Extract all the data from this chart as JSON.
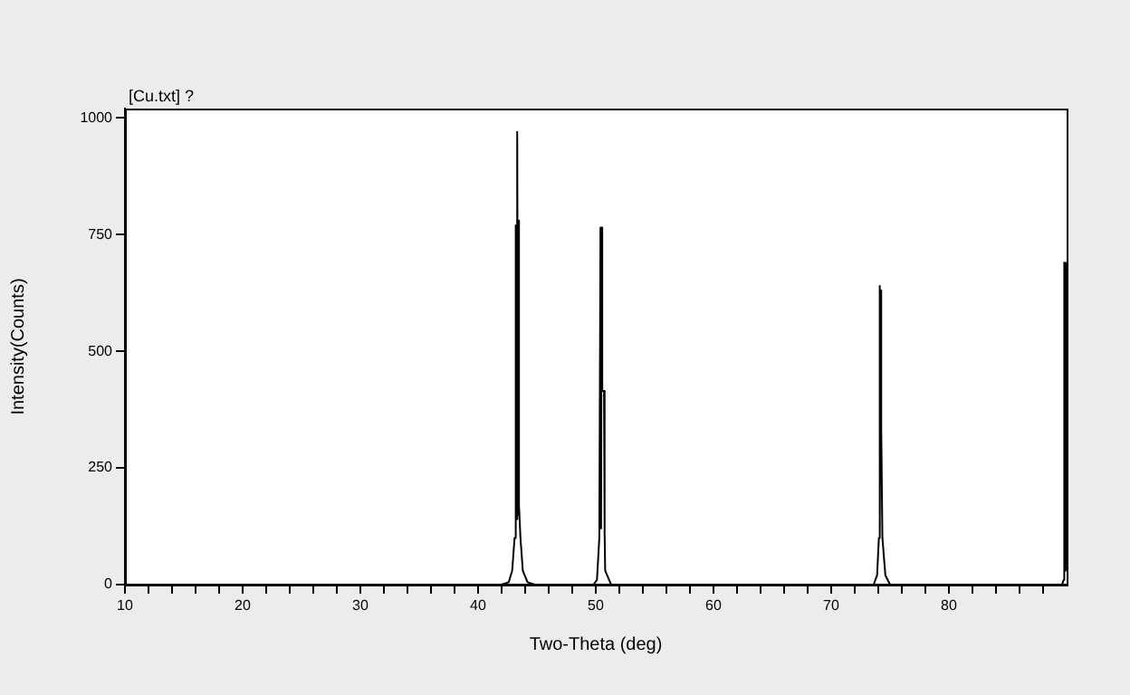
{
  "chart_data": {
    "type": "line",
    "title": "[Cu.txt] ?",
    "xlabel": "Two-Theta (deg)",
    "ylabel": "Intensity(Counts)",
    "x": [
      10,
      42.0,
      42.6,
      42.9,
      43.1,
      43.2,
      43.25,
      43.3,
      43.35,
      43.4,
      43.45,
      43.5,
      43.6,
      43.8,
      44.2,
      44.8,
      49.8,
      50.1,
      50.3,
      50.4,
      50.45,
      50.5,
      50.55,
      50.7,
      50.75,
      50.8,
      51.3,
      73.6,
      73.9,
      74.05,
      74.1,
      74.15,
      74.2,
      74.25,
      74.35,
      74.6,
      75.0,
      89.6,
      89.75,
      89.8,
      89.85,
      89.9,
      89.95
    ],
    "series": [
      {
        "color": "#000000",
        "values": [
          0,
          0,
          5,
          30,
          100,
          770,
          140,
          780,
          970,
          150,
          780,
          170,
          100,
          30,
          5,
          0,
          0,
          10,
          100,
          765,
          120,
          765,
          415,
          415,
          110,
          30,
          0,
          0,
          20,
          100,
          640,
          110,
          630,
          335,
          100,
          20,
          0,
          0,
          10,
          690,
          30,
          690,
          30
        ]
      }
    ],
    "xlim": [
      10,
      90
    ],
    "ylim": [
      0,
      1020
    ],
    "xticks": [
      10,
      {
        "value": 12,
        "label": null
      },
      {
        "value": 14,
        "label": null
      },
      {
        "value": 16,
        "label": null
      },
      {
        "value": 18,
        "label": null
      },
      20,
      {
        "value": 22,
        "label": null
      },
      {
        "value": 24,
        "label": null
      },
      {
        "value": 26,
        "label": null
      },
      {
        "value": 28,
        "label": null
      },
      30,
      {
        "value": 32,
        "label": null
      },
      {
        "value": 34,
        "label": null
      },
      {
        "value": 36,
        "label": null
      },
      {
        "value": 38,
        "label": null
      },
      40,
      {
        "value": 42,
        "label": null
      },
      {
        "value": 44,
        "label": null
      },
      {
        "value": 46,
        "label": null
      },
      {
        "value": 48,
        "label": null
      },
      50,
      {
        "value": 52,
        "label": null
      },
      {
        "value": 54,
        "label": null
      },
      {
        "value": 56,
        "label": null
      },
      {
        "value": 58,
        "label": null
      },
      60,
      {
        "value": 62,
        "label": null
      },
      {
        "value": 64,
        "label": null
      },
      {
        "value": 66,
        "label": null
      },
      {
        "value": 68,
        "label": null
      },
      70,
      {
        "value": 72,
        "label": null
      },
      {
        "value": 74,
        "label": null
      },
      {
        "value": 76,
        "label": null
      },
      {
        "value": 78,
        "label": null
      },
      80,
      {
        "value": 82,
        "label": null
      },
      {
        "value": 84,
        "label": null
      },
      {
        "value": 86,
        "label": null
      },
      {
        "value": 88,
        "label": null
      }
    ],
    "yticks": [
      0,
      250,
      500,
      750,
      1000
    ],
    "grid": false,
    "legend": false,
    "marker": "none",
    "line_style": "solid"
  }
}
